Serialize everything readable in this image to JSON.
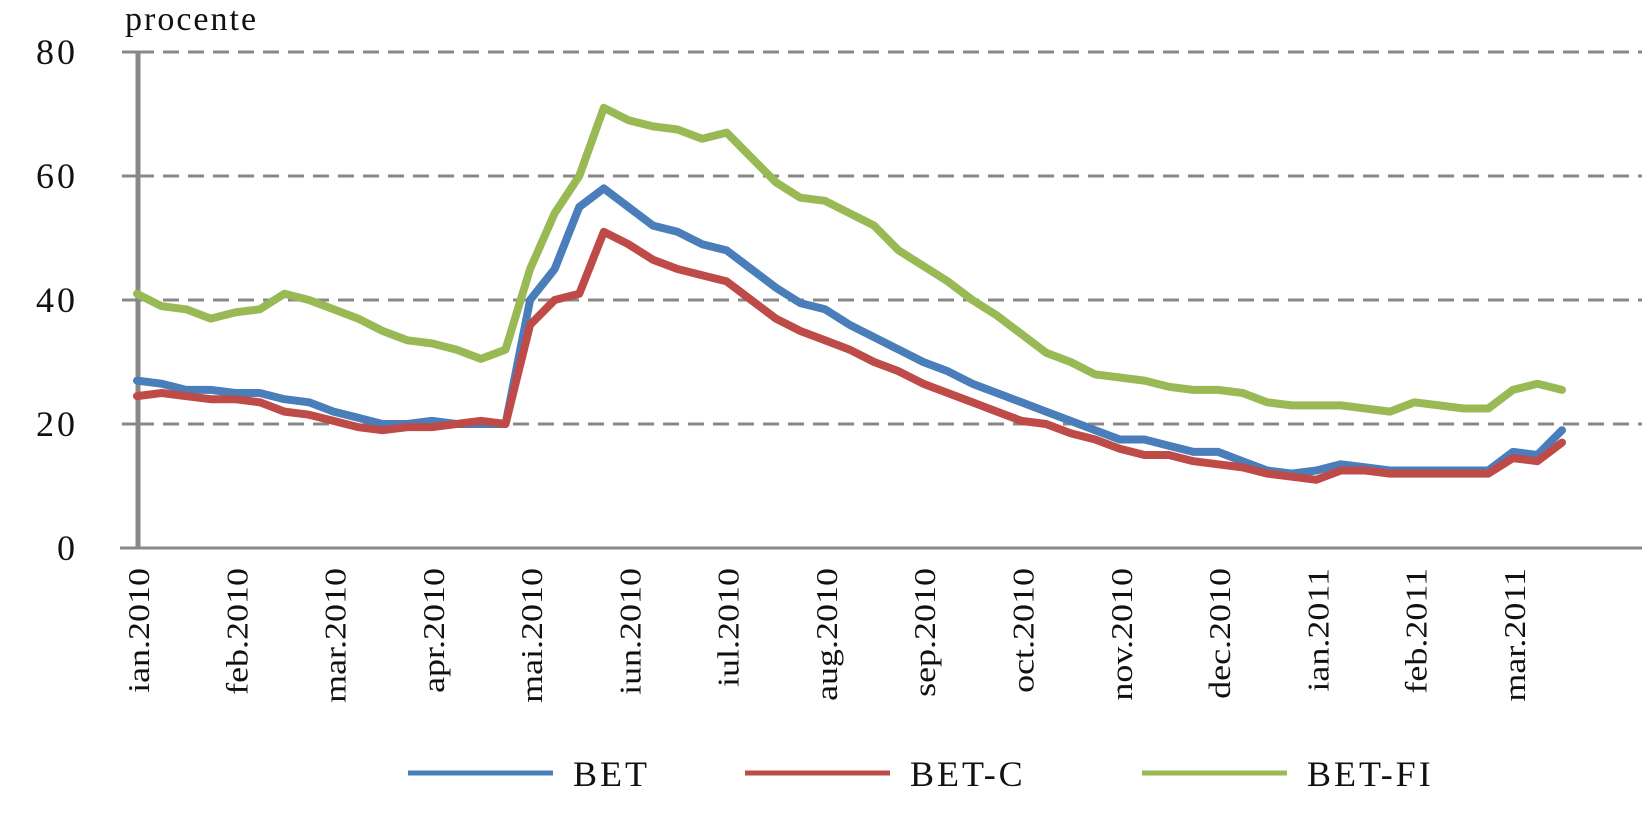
{
  "chart_data": {
    "type": "line",
    "y_axis_label": "procente",
    "categories": [
      "ian.2010",
      null,
      null,
      null,
      "feb.2010",
      null,
      null,
      null,
      "mar.2010",
      null,
      null,
      null,
      "apr.2010",
      null,
      null,
      null,
      "mai.2010",
      null,
      null,
      null,
      "iun.2010",
      null,
      null,
      null,
      "iul.2010",
      null,
      null,
      null,
      "aug.2010",
      null,
      null,
      null,
      "sep.2010",
      null,
      null,
      null,
      "oct.2010",
      null,
      null,
      null,
      "nov.2010",
      null,
      null,
      null,
      "dec.2010",
      null,
      null,
      null,
      "ian.2011",
      null,
      null,
      null,
      "feb.2011",
      null,
      null,
      null,
      "mar.2011",
      null,
      null
    ],
    "series": [
      {
        "name": "BET",
        "color": "#4a7ebb",
        "values": [
          27,
          26.5,
          25.5,
          25.5,
          25,
          25,
          24,
          23.5,
          22,
          21,
          20,
          20,
          20.5,
          20,
          20,
          20,
          40,
          45,
          55,
          58,
          55,
          52,
          51,
          49,
          48,
          45,
          42,
          39.5,
          38.5,
          36,
          34,
          32,
          30,
          28.5,
          26.5,
          25,
          23.5,
          22,
          20.5,
          19,
          17.5,
          17.5,
          16.5,
          15.5,
          15.5,
          14,
          12.5,
          12,
          12.5,
          13.5,
          13,
          12.5,
          12.5,
          12.5,
          12.5,
          12.5,
          15.5,
          15,
          19
        ]
      },
      {
        "name": "BET-C",
        "color": "#be4b48",
        "values": [
          24.5,
          25,
          24.5,
          24,
          24,
          23.5,
          22,
          21.5,
          20.5,
          19.5,
          19,
          19.5,
          19.5,
          20,
          20.5,
          20,
          36,
          40,
          41,
          51,
          49,
          46.5,
          45,
          44,
          43,
          40,
          37,
          35,
          33.5,
          32,
          30,
          28.5,
          26.5,
          25,
          23.5,
          22,
          20.5,
          20,
          18.5,
          17.5,
          16,
          15,
          15,
          14,
          13.5,
          13,
          12,
          11.5,
          11,
          12.5,
          12.5,
          12,
          12,
          12,
          12,
          12,
          14.5,
          14,
          17
        ]
      },
      {
        "name": "BET-FI",
        "color": "#98b954",
        "values": [
          41,
          39,
          38.5,
          37,
          38,
          38.5,
          41,
          40,
          38.5,
          37,
          35,
          33.5,
          33,
          32,
          30.5,
          32,
          45,
          54,
          60,
          71,
          69,
          68,
          67.5,
          66,
          67,
          63,
          59,
          56.5,
          56,
          54,
          52,
          48,
          45.5,
          43,
          40,
          37.5,
          34.5,
          31.5,
          30,
          28,
          27.5,
          27,
          26,
          25.5,
          25.5,
          25,
          23.5,
          23,
          23,
          23,
          22.5,
          22,
          23.5,
          23,
          22.5,
          22.5,
          25.5,
          26.5,
          25.5
        ]
      }
    ],
    "ylim": [
      0,
      80
    ],
    "yticks": [
      0,
      20,
      40,
      60,
      80
    ],
    "grid": true
  }
}
